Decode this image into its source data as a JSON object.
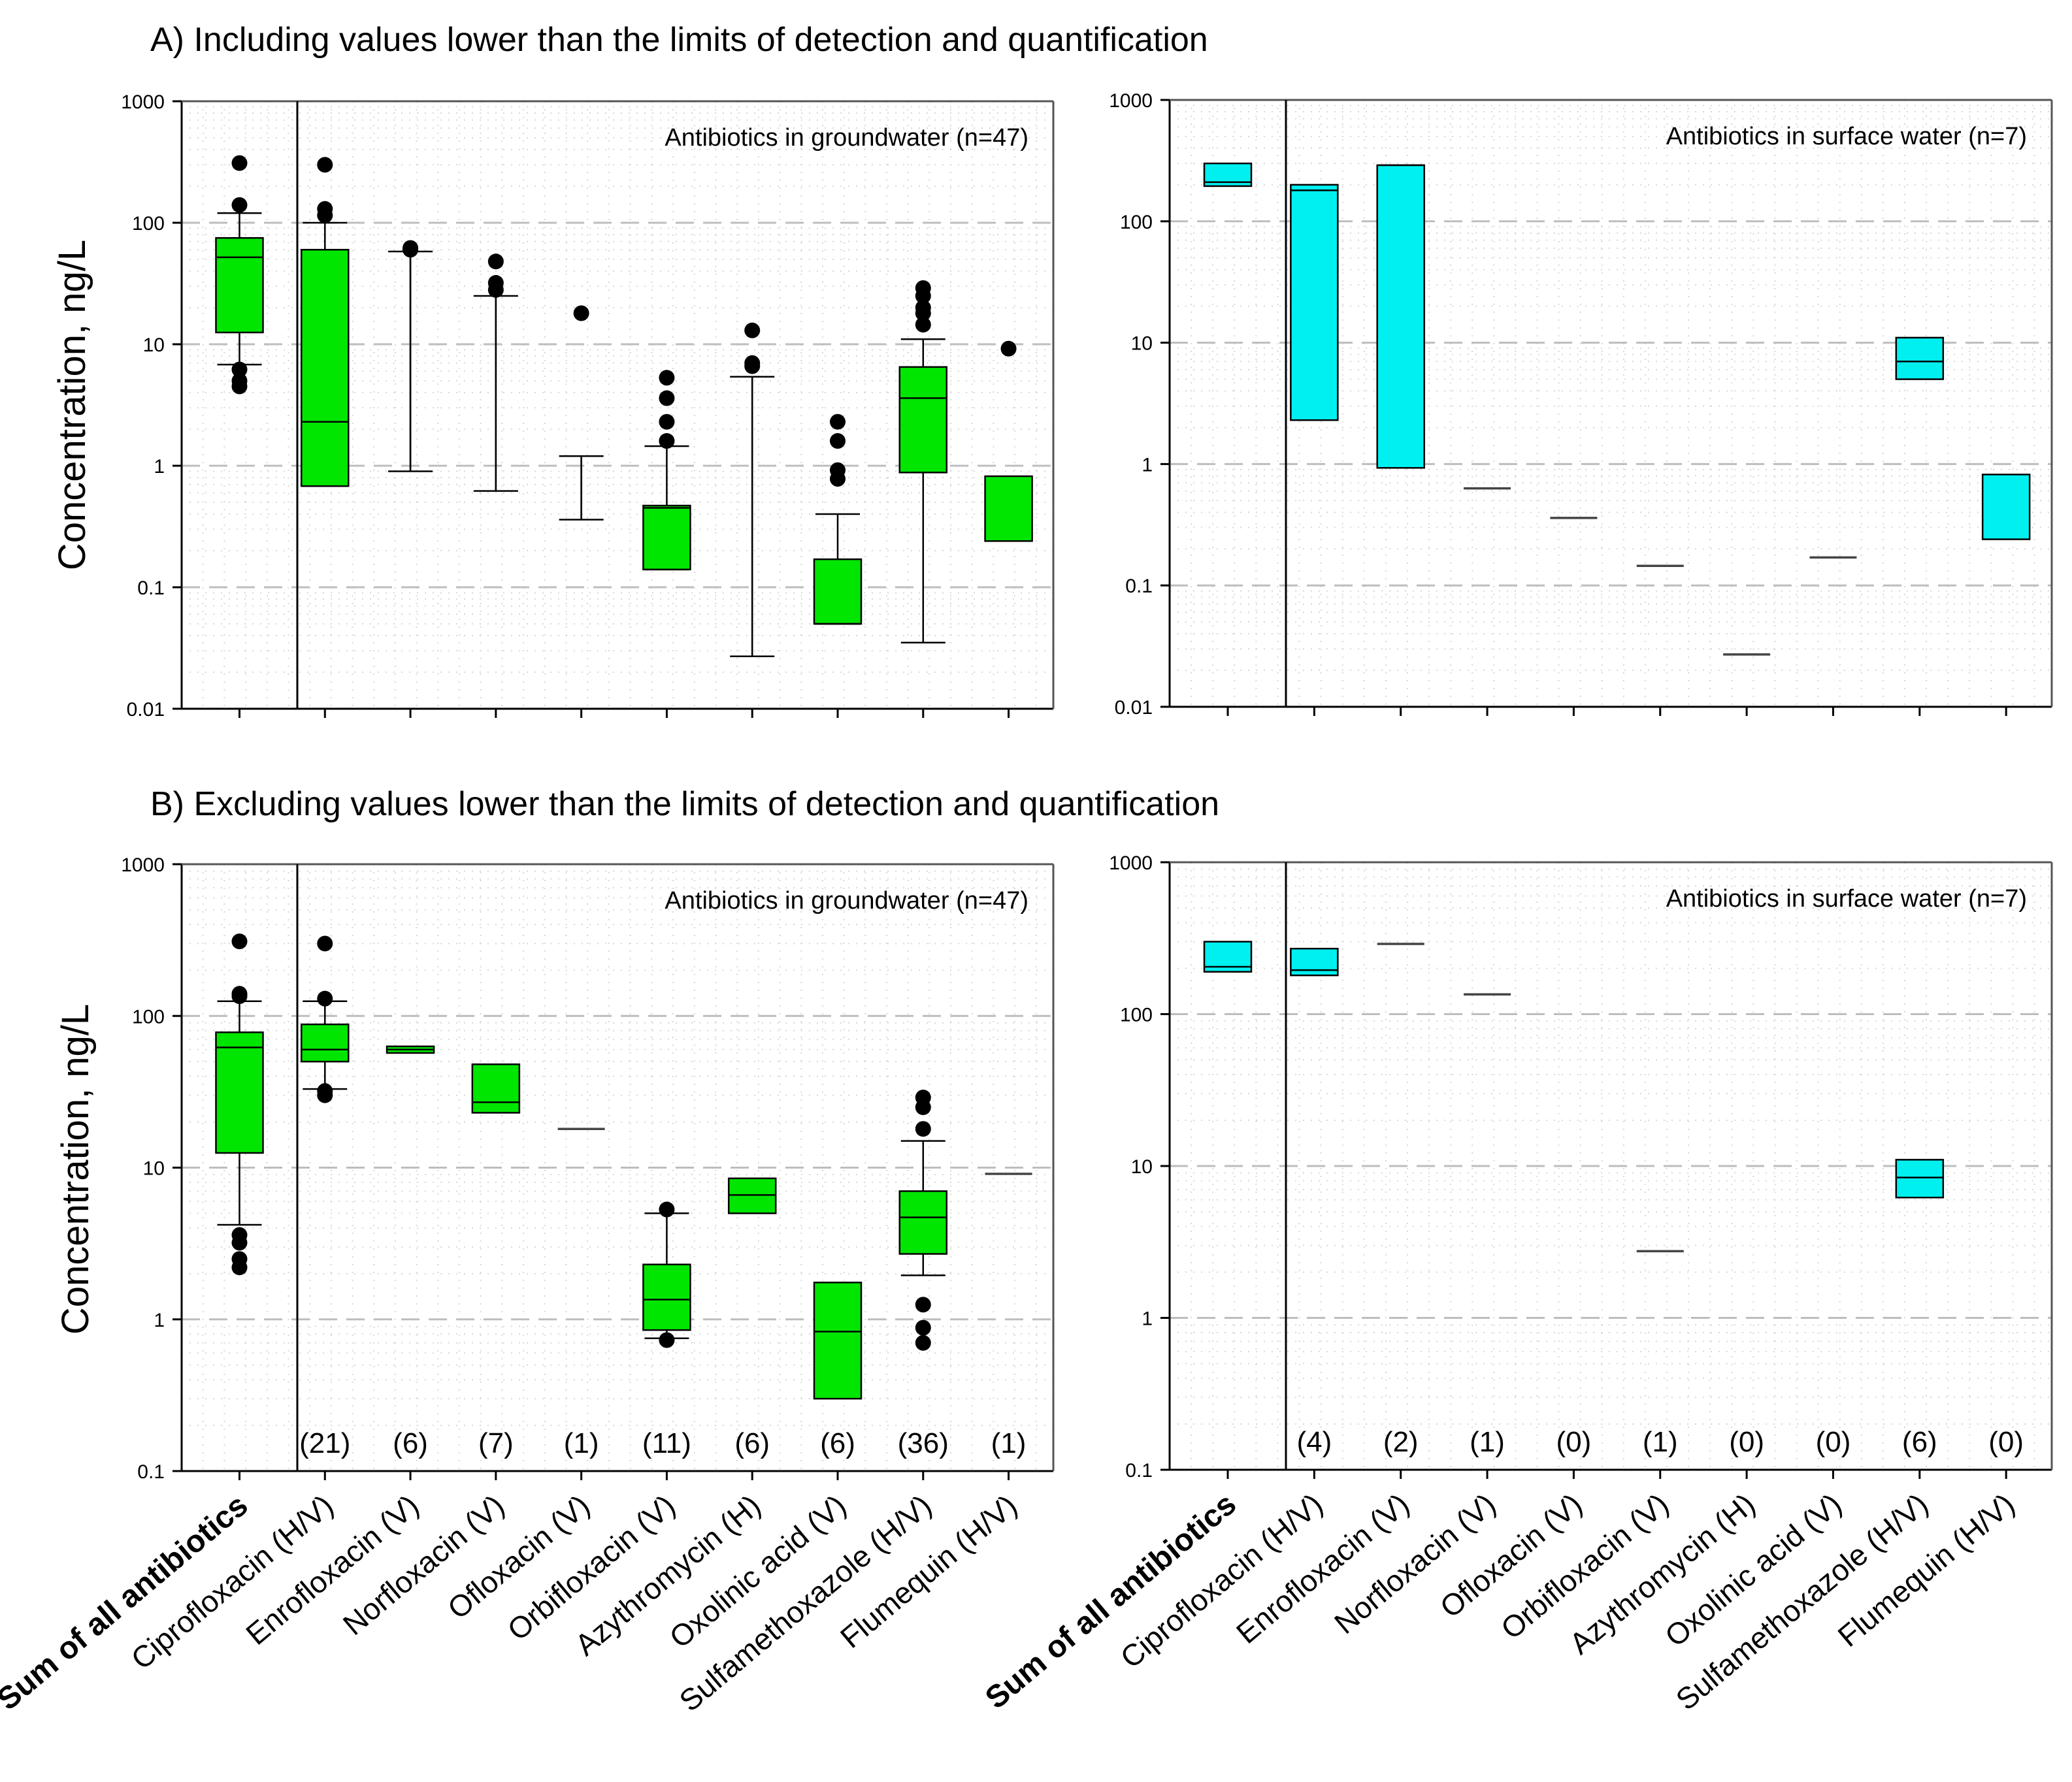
{
  "sections": [
    {
      "id": "A",
      "title": "A) Including values lower than the limits of detection and quantification"
    },
    {
      "id": "B",
      "title": "B) Excluding values lower than the limits of detection and quantification"
    }
  ],
  "y_axis_label": "Concentration, ng/L",
  "categories": [
    "Sum of all antibiotics",
    "Ciprofloxacin (H/V)",
    "Enrofloxacin (V)",
    "Norfloxacin (V)",
    "Ofloxacin (V)",
    "Orbifloxacin (V)",
    "Azythromycin (H)",
    "Oxolinic acid (V)",
    "Sulfamethoxazole (H/V)",
    "Flumequin (H/V)"
  ],
  "colors": {
    "groundwater": "#00e600",
    "surface": "#00f0f0",
    "grid": "#c8c8c8",
    "axis": "#000000"
  },
  "chart_data": [
    {
      "type": "box",
      "id": "A-gw",
      "section": "A",
      "col": 0,
      "panel_label": "Antibiotics in groundwater (n=47)",
      "ylim": [
        0.01,
        1000
      ],
      "scale": "log",
      "yticks": [
        "0.01",
        "0.1",
        "1",
        "10",
        "100",
        "1000"
      ],
      "series": [
        {
          "name": "Sum of all antibiotics",
          "q1": 12.5,
          "median": 52,
          "q3": 75,
          "w_lo": 6.8,
          "w_hi": 120,
          "outliers": [
            310,
            140,
            6.2,
            5,
            4.5
          ]
        },
        {
          "name": "Ciprofloxacin (H/V)",
          "q1": 0.68,
          "median": 2.3,
          "q3": 60,
          "w_lo": 0.68,
          "w_hi": 100,
          "outliers": [
            300,
            130,
            115
          ]
        },
        {
          "name": "Enrofloxacin (V)",
          "q1": null,
          "median": null,
          "q3": null,
          "w_lo": 0.9,
          "w_hi": 58,
          "outliers": [
            62,
            60
          ]
        },
        {
          "name": "Norfloxacin (V)",
          "q1": null,
          "median": null,
          "q3": null,
          "w_lo": 0.62,
          "w_hi": 25,
          "outliers": [
            48,
            32,
            28
          ]
        },
        {
          "name": "Ofloxacin (V)",
          "q1": null,
          "median": null,
          "q3": null,
          "w_lo": 0.36,
          "w_hi": 1.2,
          "outliers": [
            18
          ]
        },
        {
          "name": "Orbifloxacin (V)",
          "q1": 0.14,
          "median": 0.45,
          "q3": 0.47,
          "w_lo": 0.14,
          "w_hi": 1.45,
          "outliers": [
            5.3,
            3.6,
            2.3,
            1.6
          ]
        },
        {
          "name": "Azythromycin (H)",
          "q1": null,
          "median": null,
          "q3": null,
          "w_lo": 0.027,
          "w_hi": 5.4,
          "outliers": [
            13,
            7,
            6.6
          ]
        },
        {
          "name": "Oxolinic acid (V)",
          "q1": 0.05,
          "median": 0.05,
          "q3": 0.17,
          "w_lo": 0.05,
          "w_hi": 0.4,
          "outliers": [
            2.3,
            1.6,
            0.92,
            0.78
          ]
        },
        {
          "name": "Sulfamethoxazole (H/V)",
          "q1": 0.88,
          "median": 3.6,
          "q3": 6.5,
          "w_lo": 0.035,
          "w_hi": 11,
          "outliers": [
            29,
            25,
            20,
            18,
            14.5
          ]
        },
        {
          "name": "Flumequin (H/V)",
          "q1": 0.24,
          "median": null,
          "q3": 0.82,
          "w_lo": null,
          "w_hi": null,
          "outliers": [
            9.2
          ]
        }
      ]
    },
    {
      "type": "box",
      "id": "A-sw",
      "section": "A",
      "col": 1,
      "panel_label": "Antibiotics in surface water (n=7)",
      "ylim": [
        0.01,
        1000
      ],
      "scale": "log",
      "yticks": [
        "0.01",
        "0.1",
        "1",
        "10",
        "100",
        "1000"
      ],
      "series": [
        {
          "name": "Sum of all antibiotics",
          "q1": 195,
          "median": 210,
          "q3": 300,
          "w_lo": null,
          "w_hi": null,
          "outliers": []
        },
        {
          "name": "Ciprofloxacin (H/V)",
          "q1": 2.3,
          "median": 180,
          "q3": 200,
          "w_lo": null,
          "w_hi": null,
          "outliers": []
        },
        {
          "name": "Enrofloxacin (V)",
          "q1": 0.93,
          "median": 290,
          "q3": 290,
          "w_lo": null,
          "w_hi": null,
          "outliers": []
        },
        {
          "name": "Norfloxacin (V)",
          "q1": null,
          "median": 0.63,
          "q3": null,
          "w_lo": null,
          "w_hi": null,
          "outliers": []
        },
        {
          "name": "Ofloxacin (V)",
          "q1": null,
          "median": 0.36,
          "q3": null,
          "w_lo": null,
          "w_hi": null,
          "outliers": []
        },
        {
          "name": "Orbifloxacin (V)",
          "q1": null,
          "median": 0.145,
          "q3": null,
          "w_lo": null,
          "w_hi": null,
          "outliers": []
        },
        {
          "name": "Azythromycin (H)",
          "q1": null,
          "median": 0.027,
          "q3": null,
          "w_lo": null,
          "w_hi": null,
          "outliers": []
        },
        {
          "name": "Oxolinic acid (V)",
          "q1": null,
          "median": 0.17,
          "q3": null,
          "w_lo": null,
          "w_hi": null,
          "outliers": []
        },
        {
          "name": "Sulfamethoxazole (H/V)",
          "q1": 5,
          "median": 7,
          "q3": 11,
          "w_lo": null,
          "w_hi": null,
          "outliers": []
        },
        {
          "name": "Flumequin (H/V)",
          "q1": 0.24,
          "median": null,
          "q3": 0.82,
          "w_lo": null,
          "w_hi": null,
          "outliers": []
        }
      ]
    },
    {
      "type": "box",
      "id": "B-gw",
      "section": "B",
      "col": 0,
      "panel_label": "Antibiotics in groundwater (n=47)",
      "ylim": [
        0.1,
        1000
      ],
      "scale": "log",
      "yticks": [
        "0.1",
        "1",
        "10",
        "100",
        "1000"
      ],
      "counts": [
        "(21)",
        "(6)",
        "(7)",
        "(1)",
        "(11)",
        "(6)",
        "(6)",
        "(36)",
        "(1)"
      ],
      "series": [
        {
          "name": "Sum of all antibiotics",
          "q1": 12.5,
          "median": 62,
          "q3": 78,
          "w_lo": 4.2,
          "w_hi": 125,
          "outliers": [
            310,
            140,
            135,
            3.6,
            3.2,
            2.5,
            2.2
          ]
        },
        {
          "name": "Ciprofloxacin (H/V)",
          "q1": 50,
          "median": 60,
          "q3": 88,
          "w_lo": 33,
          "w_hi": 125,
          "outliers": [
            300,
            130,
            32,
            30
          ]
        },
        {
          "name": "Enrofloxacin (V)",
          "q1": 57,
          "median": 60,
          "q3": 63,
          "w_lo": null,
          "w_hi": null,
          "outliers": []
        },
        {
          "name": "Norfloxacin (V)",
          "q1": 23,
          "median": 27,
          "q3": 48,
          "w_lo": null,
          "w_hi": null,
          "outliers": []
        },
        {
          "name": "Ofloxacin (V)",
          "q1": null,
          "median": 18,
          "q3": null,
          "w_lo": null,
          "w_hi": null,
          "outliers": []
        },
        {
          "name": "Orbifloxacin (V)",
          "q1": 0.85,
          "median": 1.35,
          "q3": 2.3,
          "w_lo": 0.75,
          "w_hi": 5,
          "outliers": [
            5.3,
            0.73
          ]
        },
        {
          "name": "Azythromycin (H)",
          "q1": 5,
          "median": 6.6,
          "q3": 8.5,
          "w_lo": null,
          "w_hi": null,
          "outliers": []
        },
        {
          "name": "Oxolinic acid (V)",
          "q1": 0.3,
          "median": 0.83,
          "q3": 1.75,
          "w_lo": null,
          "w_hi": null,
          "outliers": []
        },
        {
          "name": "Sulfamethoxazole (H/V)",
          "q1": 2.7,
          "median": 4.7,
          "q3": 7,
          "w_lo": 1.95,
          "w_hi": 15,
          "outliers": [
            29,
            25,
            18,
            1.25,
            0.88,
            0.7
          ]
        },
        {
          "name": "Flumequin (H/V)",
          "q1": null,
          "median": 9.1,
          "q3": null,
          "w_lo": null,
          "w_hi": null,
          "outliers": []
        }
      ]
    },
    {
      "type": "box",
      "id": "B-sw",
      "section": "B",
      "col": 1,
      "panel_label": "Antibiotics in surface water (n=7)",
      "ylim": [
        0.1,
        1000
      ],
      "scale": "log",
      "yticks": [
        "0.1",
        "1",
        "10",
        "100",
        "1000"
      ],
      "counts": [
        "(4)",
        "(2)",
        "(1)",
        "(0)",
        "(1)",
        "(0)",
        "(0)",
        "(6)",
        "(0)"
      ],
      "series": [
        {
          "name": "Sum of all antibiotics",
          "q1": 190,
          "median": 205,
          "q3": 300,
          "w_lo": null,
          "w_hi": null,
          "outliers": []
        },
        {
          "name": "Ciprofloxacin (H/V)",
          "q1": 180,
          "median": 195,
          "q3": 270,
          "w_lo": null,
          "w_hi": null,
          "outliers": []
        },
        {
          "name": "Enrofloxacin (V)",
          "q1": null,
          "median": 290,
          "q3": null,
          "w_lo": null,
          "w_hi": null,
          "outliers": []
        },
        {
          "name": "Norfloxacin (V)",
          "q1": null,
          "median": 135,
          "q3": null,
          "w_lo": null,
          "w_hi": null,
          "outliers": []
        },
        {
          "name": "Ofloxacin (V)",
          "q1": null,
          "median": null,
          "q3": null,
          "w_lo": null,
          "w_hi": null,
          "outliers": []
        },
        {
          "name": "Orbifloxacin (V)",
          "q1": null,
          "median": 2.75,
          "q3": null,
          "w_lo": null,
          "w_hi": null,
          "outliers": []
        },
        {
          "name": "Azythromycin (H)",
          "q1": null,
          "median": null,
          "q3": null,
          "w_lo": null,
          "w_hi": null,
          "outliers": []
        },
        {
          "name": "Oxolinic acid (V)",
          "q1": null,
          "median": null,
          "q3": null,
          "w_lo": null,
          "w_hi": null,
          "outliers": []
        },
        {
          "name": "Sulfamethoxazole (H/V)",
          "q1": 6.2,
          "median": 8.4,
          "q3": 11,
          "w_lo": null,
          "w_hi": null,
          "outliers": []
        },
        {
          "name": "Flumequin (H/V)",
          "q1": null,
          "median": null,
          "q3": null,
          "w_lo": null,
          "w_hi": null,
          "outliers": []
        }
      ]
    }
  ]
}
